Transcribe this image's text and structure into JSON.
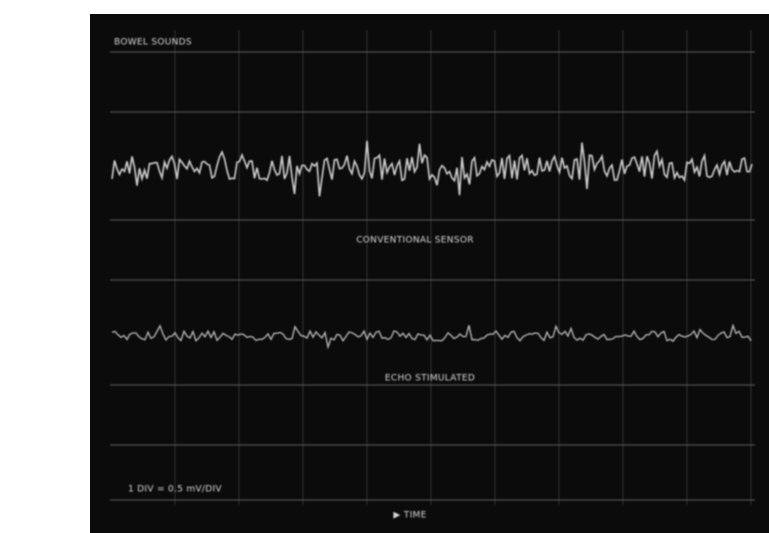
{
  "screen": {
    "top_label": "BOWEL SOUNDS",
    "trace_1_label": "CONVENTIONAL SENSOR",
    "trace_2_label": "ECHO STIMULATED",
    "scale_label": "1 DIV = 0.5 mV/DIV",
    "axis_label": "▶ TIME"
  }
}
